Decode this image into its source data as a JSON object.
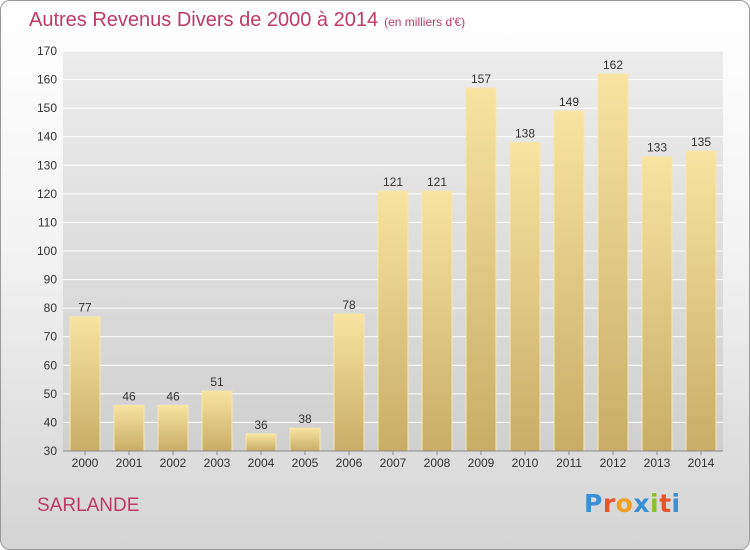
{
  "header": {
    "title": "Autres Revenus Divers de 2000 à 2014",
    "subtitle": "(en milliers d'€)"
  },
  "footer": {
    "commune": "SARLANDE",
    "logo_letters": [
      "P",
      "r",
      "o",
      "x",
      "i",
      "t",
      "i"
    ],
    "logo_colors": [
      "#3a8fd6",
      "#e8552a",
      "#f0a020",
      "#3a8fd6",
      "#8dbf2a",
      "#e8552a",
      "#3a8fd6"
    ]
  },
  "colors": {
    "title": "#c03a66",
    "bar_light": "#f8e4a0",
    "bar_dark": "#c9ad66",
    "grid": "#ffffff",
    "axis_text": "#333333"
  },
  "chart_data": {
    "type": "bar",
    "title": "Autres Revenus Divers de 2000 à 2014",
    "subtitle": "(en milliers d'€)",
    "categories": [
      "2000",
      "2001",
      "2002",
      "2003",
      "2004",
      "2005",
      "2006",
      "2007",
      "2008",
      "2009",
      "2010",
      "2011",
      "2012",
      "2013",
      "2014"
    ],
    "values": [
      77,
      46,
      46,
      51,
      36,
      38,
      78,
      121,
      121,
      157,
      138,
      149,
      162,
      133,
      135
    ],
    "ylim": [
      30,
      170
    ],
    "yticks": [
      30,
      40,
      50,
      60,
      70,
      80,
      90,
      100,
      110,
      120,
      130,
      140,
      150,
      160,
      170
    ],
    "grid": true,
    "data_labels": true
  }
}
